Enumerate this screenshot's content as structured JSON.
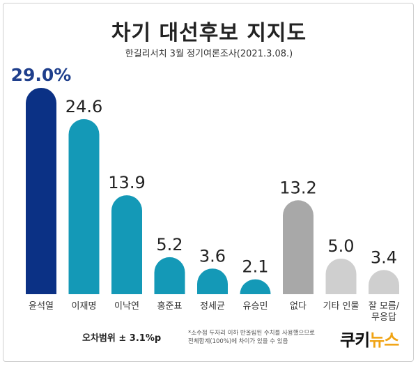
{
  "title": "차기 대선후보 지지도",
  "subtitle": "한길리서치 3월 정기여론조사(2021.3.08.)",
  "chart_data": {
    "type": "bar",
    "title": "차기 대선후보 지지도",
    "subtitle": "한길리서치 3월 정기여론조사(2021.3.08.)",
    "categories": [
      "윤석열",
      "이재명",
      "이낙연",
      "홍준표",
      "정세균",
      "유승민",
      "없다",
      "기타 인물",
      "잘 모름/무응답"
    ],
    "category_lines": [
      [
        "윤석열"
      ],
      [
        "이재명"
      ],
      [
        "이낙연"
      ],
      [
        "홍준표"
      ],
      [
        "정세균"
      ],
      [
        "유승민"
      ],
      [
        "없다"
      ],
      [
        "기타 인물"
      ],
      [
        "잘 모름/",
        "무응답"
      ]
    ],
    "values": [
      29.0,
      24.6,
      13.9,
      5.2,
      3.6,
      2.1,
      13.2,
      5.0,
      3.4
    ],
    "value_labels": [
      "29.0%",
      "24.6",
      "13.9",
      "5.2",
      "3.6",
      "2.1",
      "13.2",
      "5.0",
      "3.4"
    ],
    "colors": [
      "#0b3185",
      "#1499b7",
      "#1499b7",
      "#1499b7",
      "#1499b7",
      "#1499b7",
      "#a8a8a8",
      "#cfcfcf",
      "#cfcfcf"
    ],
    "ylim": [
      0,
      30
    ],
    "grid": false,
    "legend": "none"
  },
  "margin_of_error": "오차범위 ± 3.1%p",
  "footnote": {
    "line1": "*소수점 두자리 이하 반올림된 수치를 사용했으므로",
    "line2": "전체합계(100%)에 차이가 있을 수 있음"
  },
  "logo": {
    "part1": "쿠키",
    "part2": "뉴스",
    "color1": "#111111",
    "color2": "#f0a313"
  }
}
